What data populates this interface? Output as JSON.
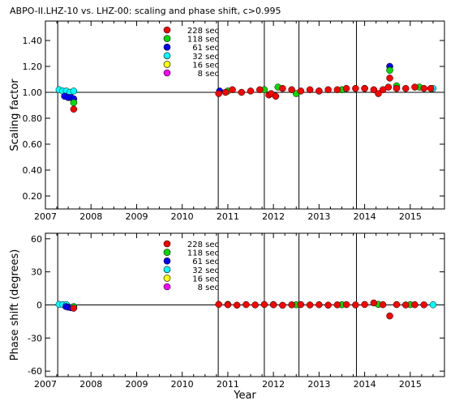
{
  "figure_title": "ABPO-II.LHZ-10 vs. LHZ-00: scaling and phase shift, c>0.995",
  "colors": {
    "228 sec": "#ff0000",
    "118 sec": "#00dd00",
    "61 sec": "#0000ff",
    "32 sec": "#00ffff",
    "16 sec": "#ffff00",
    "8 sec": "#ff00ff",
    "axes": "#000000",
    "background": "#ffffff"
  },
  "chart_data": [
    {
      "type": "scatter",
      "title": "ABPO-II.LHZ-10 vs. LHZ-00: scaling and phase shift, c>0.995",
      "xlabel": "",
      "ylabel": "Scaling factor",
      "xlim": [
        2007.0,
        2015.75
      ],
      "ylim": [
        0.1,
        1.55
      ],
      "xticks": [
        "2007",
        "2008",
        "2009",
        "2010",
        "2011",
        "2012",
        "2013",
        "2014",
        "2015"
      ],
      "yticks": [
        "0.20",
        "0.40",
        "0.60",
        "0.80",
        "1.00",
        "1.20",
        "1.40"
      ],
      "reference_line": 1.0,
      "epoch_lines": [
        2007.27,
        2010.79,
        2011.8,
        2012.56,
        2013.82
      ],
      "legend": [
        "228 sec",
        "118 sec",
        "61 sec",
        "32 sec",
        "16 sec",
        "8 sec"
      ],
      "legend_placement": "top-center",
      "series": [
        {
          "name": "32 sec",
          "x": [
            2007.3,
            2007.38,
            2007.46,
            2007.54,
            2007.62,
            2015.5
          ],
          "y": [
            1.02,
            1.01,
            1.01,
            1.0,
            1.01,
            1.03
          ]
        },
        {
          "name": "61 sec",
          "x": [
            2007.42,
            2007.5,
            2007.56,
            2007.62,
            2010.82,
            2014.55
          ],
          "y": [
            0.97,
            0.96,
            0.96,
            0.95,
            1.01,
            1.2
          ]
        },
        {
          "name": "118 sec",
          "x": [
            2007.62,
            2011.0,
            2011.8,
            2012.1,
            2012.5,
            2013.0,
            2013.5,
            2014.0,
            2014.55,
            2014.7,
            2015.2
          ],
          "y": [
            0.92,
            1.01,
            1.02,
            1.04,
            0.99,
            1.01,
            1.02,
            1.03,
            1.17,
            1.05,
            1.04
          ]
        },
        {
          "name": "228 sec",
          "x": [
            2007.62,
            2010.8,
            2010.95,
            2011.1,
            2011.3,
            2011.5,
            2011.7,
            2011.9,
            2011.95,
            2012.05,
            2012.2,
            2012.4,
            2012.6,
            2012.8,
            2013.0,
            2013.2,
            2013.4,
            2013.6,
            2013.8,
            2014.0,
            2014.2,
            2014.3,
            2014.4,
            2014.52,
            2014.55,
            2014.7,
            2014.9,
            2015.1,
            2015.3,
            2015.45
          ],
          "y": [
            0.87,
            0.99,
            1.0,
            1.02,
            1.0,
            1.01,
            1.02,
            0.98,
            0.99,
            0.97,
            1.03,
            1.02,
            1.01,
            1.02,
            1.01,
            1.02,
            1.02,
            1.03,
            1.03,
            1.03,
            1.02,
            0.99,
            1.02,
            1.04,
            1.11,
            1.03,
            1.03,
            1.04,
            1.03,
            1.03
          ]
        }
      ]
    },
    {
      "type": "scatter",
      "title": "",
      "xlabel": "Year",
      "ylabel": "Phase shift (degrees)",
      "xlim": [
        2007.0,
        2015.75
      ],
      "ylim": [
        -65,
        65
      ],
      "xticks": [
        "2007",
        "2008",
        "2009",
        "2010",
        "2011",
        "2012",
        "2013",
        "2014",
        "2015"
      ],
      "yticks": [
        "-60",
        "-30",
        "0",
        "30",
        "60"
      ],
      "reference_line": 0,
      "epoch_lines": [
        2007.27,
        2010.79,
        2011.8,
        2012.56,
        2013.82
      ],
      "legend": [
        "228 sec",
        "118 sec",
        "61 sec",
        "32 sec",
        "16 sec",
        "8 sec"
      ],
      "legend_placement": "top-center",
      "series": [
        {
          "name": "32 sec",
          "x": [
            2007.3,
            2007.38,
            2007.46,
            2015.5
          ],
          "y": [
            0.5,
            0.3,
            0.2,
            0.2
          ]
        },
        {
          "name": "61 sec",
          "x": [
            2007.45,
            2007.5,
            2007.56
          ],
          "y": [
            -1.5,
            -2.0,
            -2.5
          ]
        },
        {
          "name": "118 sec",
          "x": [
            2007.62,
            2011.0,
            2012.0,
            2012.5,
            2013.5,
            2014.3,
            2015.0
          ],
          "y": [
            -1.5,
            0.5,
            0.3,
            0.2,
            0.2,
            0.5,
            0.3
          ]
        },
        {
          "name": "228 sec",
          "x": [
            2007.62,
            2010.8,
            2011.0,
            2011.2,
            2011.4,
            2011.6,
            2011.8,
            2012.0,
            2012.2,
            2012.4,
            2012.6,
            2012.8,
            2013.0,
            2013.2,
            2013.4,
            2013.6,
            2013.8,
            2014.0,
            2014.2,
            2014.4,
            2014.55,
            2014.7,
            2014.9,
            2015.1,
            2015.3
          ],
          "y": [
            -3.0,
            0.5,
            0.2,
            -0.2,
            0.3,
            0.0,
            0.4,
            0.2,
            -0.3,
            0.1,
            0.3,
            0.0,
            0.2,
            -0.2,
            0.1,
            0.3,
            0.0,
            0.4,
            1.8,
            0.2,
            -10.0,
            0.3,
            0.0,
            0.2,
            0.1
          ]
        }
      ]
    }
  ]
}
